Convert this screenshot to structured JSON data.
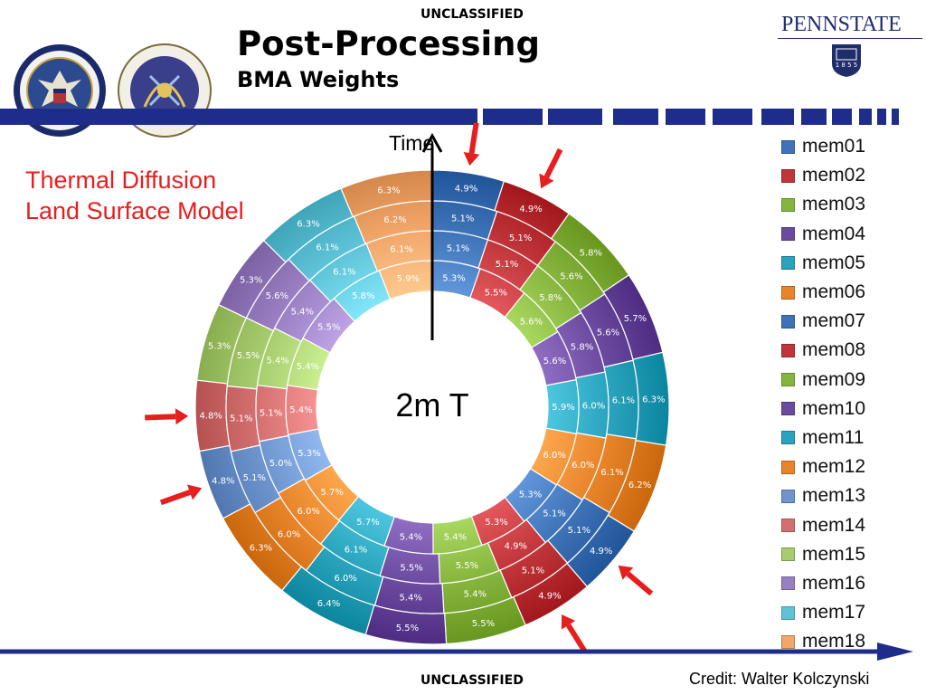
{
  "header": {
    "classification_top": "UNCLASSIFIED",
    "title": "Post-Processing",
    "subtitle": "BMA Weights",
    "logos": {
      "left_1": "defense-threat-reduction-agency-seal",
      "left_2": "joint-science-and-technology-office-seal",
      "right": "penn-state-logo"
    },
    "pennstate_text": "PENNSTATE",
    "pennstate_year": "1 8 5 5"
  },
  "footer": {
    "classification_bottom": "UNCLASSIFIED",
    "credit": "Credit: Walter Kolczynski"
  },
  "annotation": {
    "model_line1": "Thermal Diffusion",
    "model_line2": "Land Surface Model",
    "time_label": "Time",
    "center_label": "2m T"
  },
  "colors": {
    "mem01": "#3f73b8",
    "mem02": "#c0353a",
    "mem03": "#86b53e",
    "mem04": "#6b4aa0",
    "mem05": "#2aa3bd",
    "mem06": "#e8842a",
    "mem07": "#3f73b8",
    "mem08": "#c0353a",
    "mem09": "#86b53e",
    "mem10": "#6b4aa0",
    "mem11": "#2aa3bd",
    "mem12": "#e8842a",
    "mem13": "#6f95cf",
    "mem14": "#d46f6f",
    "mem15": "#a7cc6d",
    "mem16": "#9a80c2",
    "mem17": "#5ec3d6",
    "mem18": "#f2a66a",
    "arrow": "#e61e1e",
    "header_bar": "#1f2d8a"
  },
  "chart_data": {
    "type": "pie",
    "style": "multi-ring donut",
    "ring_order": "outermost to innermost",
    "categories": [
      "mem01",
      "mem02",
      "mem03",
      "mem04",
      "mem05",
      "mem06",
      "mem07",
      "mem08",
      "mem09",
      "mem10",
      "mem11",
      "mem12",
      "mem13",
      "mem14",
      "mem15",
      "mem16",
      "mem17",
      "mem18"
    ],
    "series": [
      {
        "values": [
          4.9,
          4.9,
          5.8,
          5.7,
          6.3,
          6.2,
          4.9,
          4.9,
          5.5,
          5.5,
          6.4,
          6.3,
          4.8,
          4.8,
          5.3,
          5.3,
          6.3,
          6.3
        ],
        "labels": [
          "4.9%",
          "4.9%",
          "5.8%",
          "5.7%",
          "6.3%",
          "6.2%",
          "4.9%",
          "4.9%",
          "5.5%",
          "5.5%",
          "6.4%",
          "6.3%",
          "4.8%",
          "4.8%",
          "5.3%",
          "5.3%",
          "6.3%",
          "6.3%"
        ]
      },
      {
        "values": [
          5.1,
          5.1,
          5.6,
          5.6,
          6.1,
          6.1,
          5.1,
          5.1,
          5.4,
          5.4,
          6.0,
          6.0,
          5.1,
          5.1,
          5.5,
          5.6,
          6.1,
          6.2
        ],
        "labels": [
          "5.1%",
          "5.1%",
          "5.6%",
          "5.6%",
          "6.1%",
          "6.1%",
          "5.1%",
          "5.1%",
          "5.4%",
          "5.4%",
          "6.0%",
          "6.0%",
          "5.1%",
          "5.1%",
          "5.5%",
          "5.6%",
          "6.1%",
          "6.2%"
        ]
      },
      {
        "values": [
          5.1,
          5.1,
          5.8,
          5.8,
          6.0,
          6.0,
          5.1,
          4.9,
          5.5,
          5.5,
          6.1,
          6.0,
          5.0,
          5.1,
          5.4,
          5.4,
          6.1,
          6.1
        ],
        "labels": [
          "5.1%",
          "5.1%",
          "5.8%",
          "5.8%",
          "6.0%",
          "6.0%",
          "5.1%",
          "4.9%",
          "5.5%",
          "5.5%",
          "6.1%",
          "6.0%",
          "5.0%",
          "5.1%",
          "5.4%",
          "5.4%",
          "6.1%",
          "6.1%"
        ]
      },
      {
        "values": [
          5.3,
          5.5,
          5.6,
          5.6,
          5.9,
          6.0,
          5.3,
          5.3,
          5.4,
          5.4,
          5.7,
          5.7,
          5.3,
          5.4,
          5.4,
          5.5,
          5.8,
          5.9
        ],
        "labels": [
          "5.3%",
          "5.5%",
          "5.6%",
          "5.6%",
          "5.9%",
          "6.0%",
          "5.3%",
          "5.3%",
          "5.4%",
          "5.4%",
          "5.7%",
          "5.7%",
          "5.3%",
          "5.4%",
          "5.4%",
          "5.5%",
          "5.8%",
          "5.9%"
        ]
      }
    ],
    "highlighted_members": [
      "mem01",
      "mem02",
      "mem07",
      "mem08",
      "mem13",
      "mem14"
    ],
    "legend_position": "right"
  }
}
